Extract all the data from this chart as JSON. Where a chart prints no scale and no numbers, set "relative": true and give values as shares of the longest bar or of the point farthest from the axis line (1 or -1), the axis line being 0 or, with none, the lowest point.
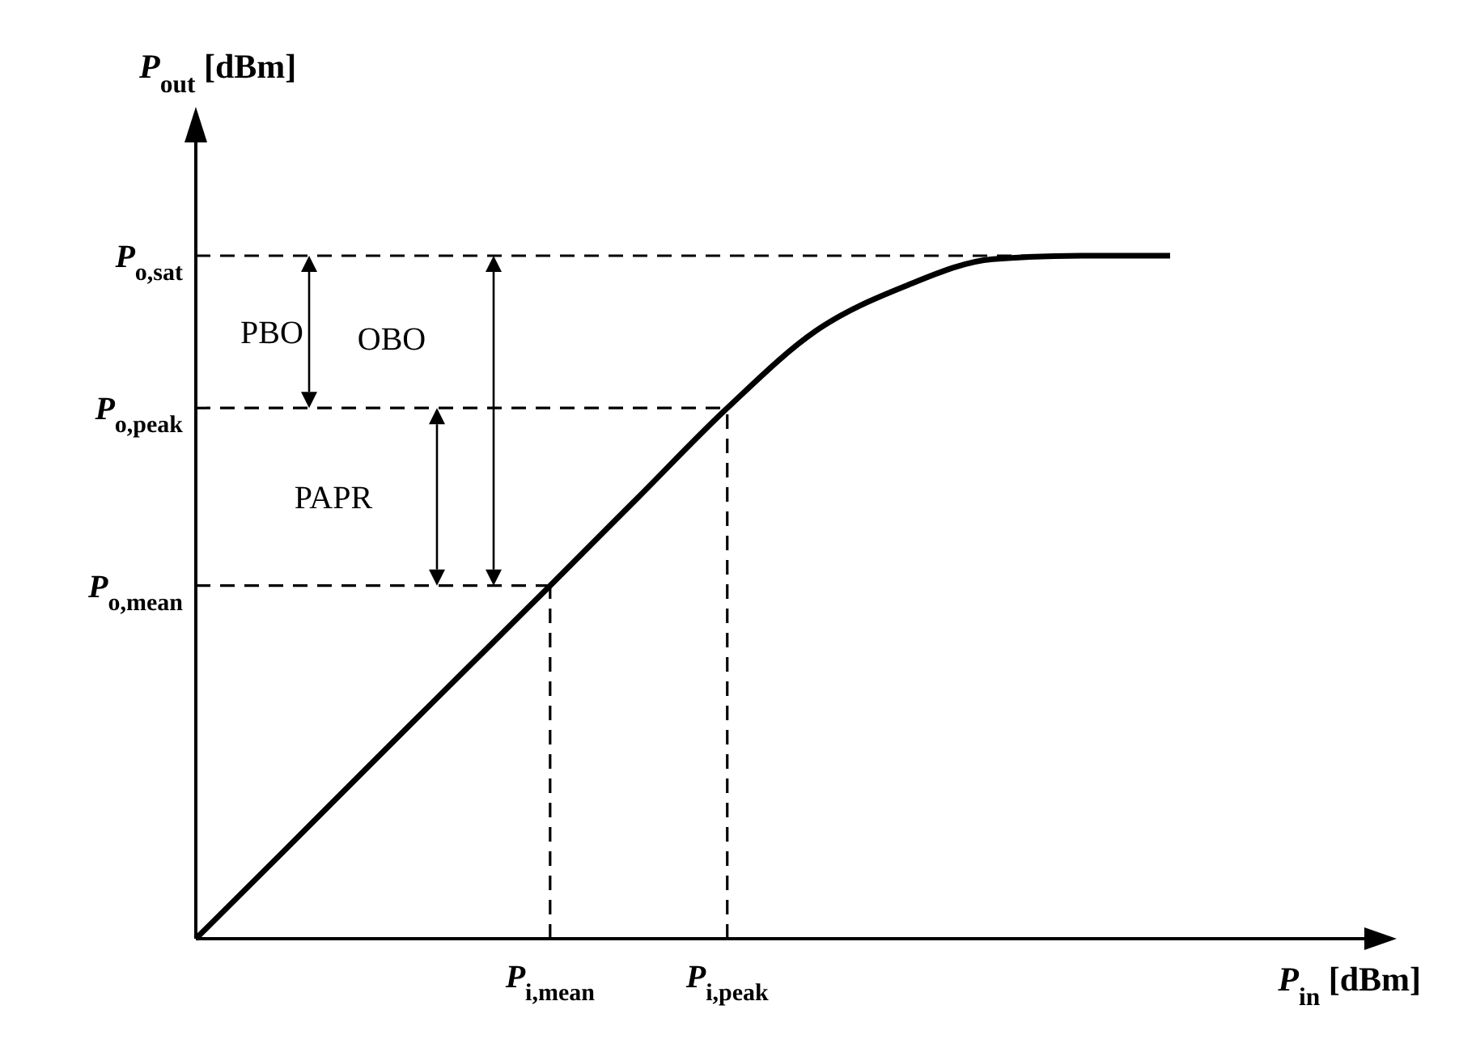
{
  "chart_data": {
    "type": "line",
    "relative": true,
    "xlabel": "P$_{in}$ [dBm]",
    "ylabel": "P$_{out}$ [dBm]",
    "categories": [
      null,
      null,
      null,
      null,
      "P$_{i,mean}$",
      null,
      "P$_{i,peak}$",
      null,
      null,
      null,
      null,
      null
    ],
    "series": [
      {
        "color": "#000000",
        "values": [
          0,
          0.129,
          0.259,
          0.388,
          0.517,
          0.647,
          0.777,
          0.89,
          0.955,
          0.995,
          1,
          1
        ]
      }
    ],
    "ref_lines": [
      {
        "axis": "y",
        "value": 1,
        "label": "P$_{o,sat}$",
        "line_style": "dashed"
      },
      {
        "axis": "y",
        "value": 0.777,
        "label": "P$_{o,peak}$",
        "line_style": "dashed"
      },
      {
        "axis": "y",
        "value": 0.517,
        "label": "P$_{o,mean}$",
        "line_style": "dashed"
      }
    ],
    "annotations": [
      "PBO",
      "OBO",
      "PAPR"
    ],
    "marker": "none",
    "line_style": "solid"
  }
}
